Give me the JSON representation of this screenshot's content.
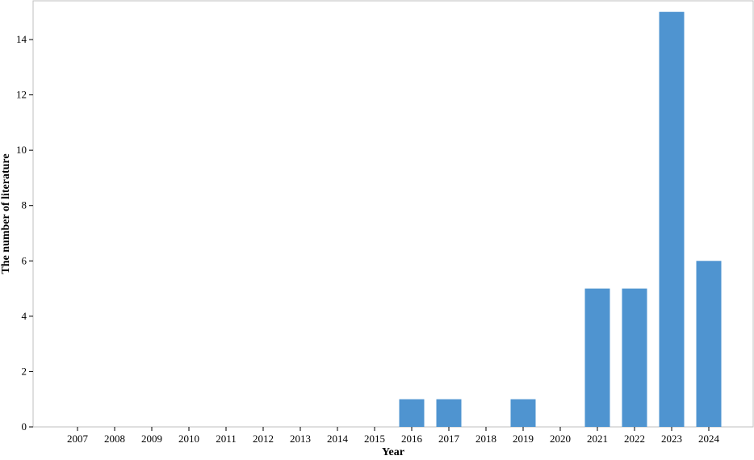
{
  "chart_data": {
    "type": "bar",
    "categories": [
      "2007",
      "2008",
      "2009",
      "2010",
      "2011",
      "2012",
      "2013",
      "2014",
      "2015",
      "2016",
      "2017",
      "2018",
      "2019",
      "2020",
      "2021",
      "2022",
      "2023",
      "2024"
    ],
    "values": [
      0,
      0,
      0,
      0,
      0,
      0,
      0,
      0,
      0,
      1,
      1,
      0,
      1,
      0,
      5,
      5,
      15,
      6
    ],
    "xlabel": "Year",
    "ylabel": "The number of literature",
    "ylim": [
      0,
      15.4
    ],
    "yticks": [
      0,
      2,
      4,
      6,
      8,
      10,
      12,
      14
    ],
    "bar_color": "#4F94D0",
    "grid": false,
    "legend": "none"
  }
}
